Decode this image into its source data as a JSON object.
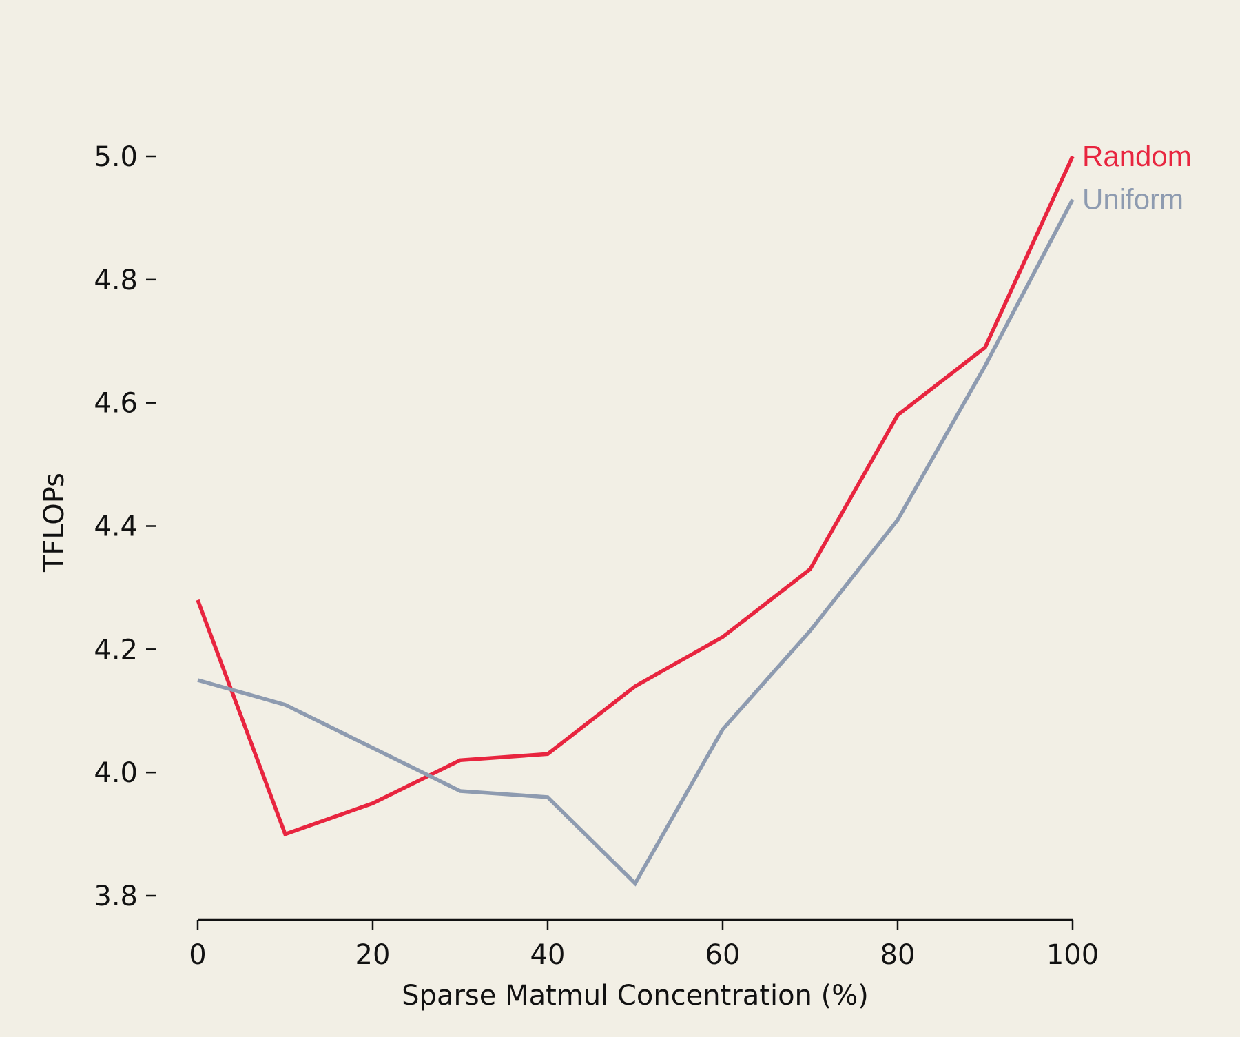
{
  "chart_data": {
    "type": "line",
    "title": "",
    "xlabel": "Sparse Matmul Concentration (%)",
    "ylabel": "TFLOPs",
    "x": [
      0,
      10,
      20,
      30,
      40,
      50,
      60,
      70,
      80,
      90,
      100
    ],
    "xlim": [
      0,
      100
    ],
    "ylim": [
      3.76,
      5.1
    ],
    "xticks": [
      0,
      20,
      40,
      60,
      80,
      100
    ],
    "yticks": [
      3.8,
      4.0,
      4.2,
      4.4,
      4.6,
      4.8,
      5.0
    ],
    "grid": false,
    "legend_placement": "line-end labels, right",
    "series": [
      {
        "name": "Random",
        "color": "#e8253f",
        "values": [
          4.28,
          3.9,
          3.95,
          4.02,
          4.03,
          4.14,
          4.22,
          4.33,
          4.58,
          4.69,
          5.0
        ]
      },
      {
        "name": "Uniform",
        "color": "#8e9bb0",
        "values": [
          4.15,
          4.11,
          4.04,
          3.97,
          3.96,
          3.82,
          4.07,
          4.23,
          4.41,
          4.66,
          4.93
        ]
      }
    ]
  }
}
